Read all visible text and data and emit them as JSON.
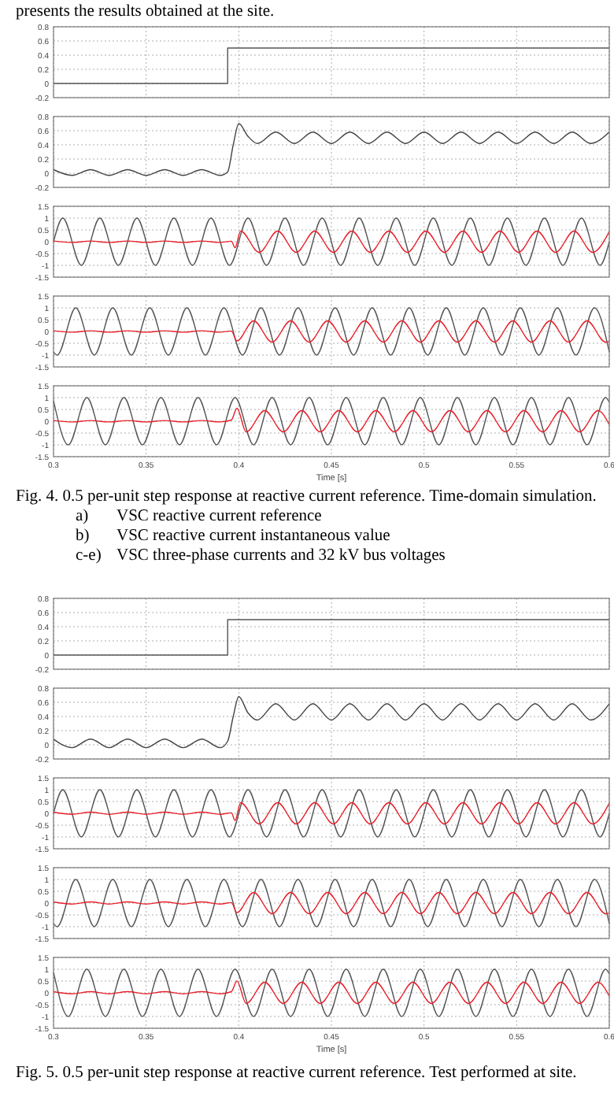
{
  "chart_data": [
    {
      "type": "step",
      "xlim": [
        0.3,
        0.6
      ],
      "xticks": [
        0.3,
        0.35,
        0.4,
        0.45,
        0.5,
        0.55,
        0.6
      ],
      "ylim": [
        -0.2,
        0.8
      ],
      "yticks": [
        -0.2,
        0,
        0.2,
        0.4,
        0.6,
        0.8
      ],
      "grid": true,
      "tick_labels": "y",
      "annotations": [
        "presents the results obtained at the site."
      ],
      "series": [
        {
          "color": "#555555",
          "x": [
            0.3,
            0.394,
            0.6
          ],
          "values": [
            0,
            0.5,
            0.5
          ]
        }
      ]
    },
    {
      "type": "line",
      "xlim": [
        0.3,
        0.6
      ],
      "xticks": [
        0.3,
        0.35,
        0.4,
        0.45,
        0.5,
        0.55,
        0.6
      ],
      "ylim": [
        -0.2,
        0.8
      ],
      "yticks": [
        -0.2,
        0,
        0.2,
        0.4,
        0.6,
        0.8
      ],
      "grid": true,
      "tick_labels": "y",
      "series": [
        {
          "color": "#444444",
          "x": [
            0.3,
            0.31,
            0.32,
            0.33,
            0.34,
            0.35,
            0.36,
            0.37,
            0.38,
            0.39,
            0.394,
            0.397,
            0.4,
            0.405,
            0.41,
            0.42,
            0.43,
            0.44,
            0.45,
            0.46,
            0.47,
            0.48,
            0.49,
            0.5,
            0.51,
            0.52,
            0.53,
            0.54,
            0.55,
            0.56,
            0.57,
            0.58,
            0.59,
            0.6
          ],
          "values": [
            0.05,
            -0.03,
            0.05,
            -0.03,
            0.05,
            -0.03,
            0.05,
            -0.03,
            0.05,
            -0.03,
            0.02,
            0.4,
            0.7,
            0.52,
            0.42,
            0.58,
            0.42,
            0.58,
            0.42,
            0.58,
            0.42,
            0.58,
            0.42,
            0.58,
            0.42,
            0.58,
            0.42,
            0.58,
            0.42,
            0.58,
            0.42,
            0.58,
            0.42,
            0.58
          ]
        }
      ]
    },
    {
      "type": "line",
      "xlim": [
        0.3,
        0.6
      ],
      "xticks": [
        0.3,
        0.35,
        0.4,
        0.45,
        0.5,
        0.55,
        0.6
      ],
      "ylim": [
        -1.5,
        1.5
      ],
      "yticks": [
        -1.5,
        -1,
        -0.5,
        0,
        0.5,
        1,
        1.5
      ],
      "grid": true,
      "tick_labels": "y",
      "series": [
        {
          "color": "#555555",
          "x": [
            0.3,
            0.305,
            0.315,
            0.325,
            0.335,
            0.345,
            0.355,
            0.365,
            0.375,
            0.385,
            0.395,
            0.405,
            0.415,
            0.425,
            0.435,
            0.445,
            0.455,
            0.465,
            0.475,
            0.485,
            0.495,
            0.505,
            0.515,
            0.525,
            0.535,
            0.545,
            0.555,
            0.565,
            0.575,
            0.585,
            0.595,
            0.6
          ],
          "values": [
            0,
            1,
            -1,
            1,
            -1,
            1,
            -1,
            1,
            -1,
            1,
            -1,
            1,
            -1,
            1,
            -1,
            1,
            -1,
            1,
            -1,
            1,
            -1,
            1,
            -1,
            1,
            -1,
            1,
            -1,
            1,
            -1,
            1,
            -1,
            0
          ]
        },
        {
          "color": "#e8202a",
          "x": [
            0.3,
            0.31,
            0.32,
            0.33,
            0.34,
            0.35,
            0.36,
            0.37,
            0.38,
            0.39,
            0.396,
            0.398,
            0.401,
            0.411,
            0.421,
            0.431,
            0.441,
            0.451,
            0.461,
            0.471,
            0.481,
            0.491,
            0.501,
            0.511,
            0.521,
            0.531,
            0.541,
            0.551,
            0.561,
            0.571,
            0.581,
            0.591,
            0.6
          ],
          "values": [
            0.03,
            -0.03,
            0.03,
            -0.03,
            0.03,
            -0.03,
            0.03,
            -0.03,
            0.03,
            -0.03,
            0.02,
            -0.25,
            0.45,
            -0.45,
            0.45,
            -0.45,
            0.45,
            -0.45,
            0.45,
            -0.45,
            0.45,
            -0.45,
            0.45,
            -0.45,
            0.45,
            -0.45,
            0.45,
            -0.45,
            0.45,
            -0.45,
            0.45,
            -0.45,
            0.43
          ]
        }
      ]
    },
    {
      "type": "line",
      "xlim": [
        0.3,
        0.6
      ],
      "xticks": [
        0.3,
        0.35,
        0.4,
        0.45,
        0.5,
        0.55,
        0.6
      ],
      "ylim": [
        -1.5,
        1.5
      ],
      "yticks": [
        -1.5,
        -1,
        -0.5,
        0,
        0.5,
        1,
        1.5
      ],
      "grid": true,
      "tick_labels": "y",
      "series": [
        {
          "color": "#555555",
          "x": [
            0.3,
            0.302,
            0.312,
            0.322,
            0.332,
            0.342,
            0.352,
            0.362,
            0.372,
            0.382,
            0.392,
            0.402,
            0.412,
            0.422,
            0.432,
            0.442,
            0.452,
            0.462,
            0.472,
            0.482,
            0.492,
            0.502,
            0.512,
            0.522,
            0.532,
            0.542,
            0.552,
            0.562,
            0.572,
            0.582,
            0.592,
            0.6
          ],
          "values": [
            -0.87,
            -1,
            1,
            -1,
            1,
            -1,
            1,
            -1,
            1,
            -1,
            1,
            -1,
            1,
            -1,
            1,
            -1,
            1,
            -1,
            1,
            -1,
            1,
            -1,
            1,
            -1,
            1,
            -1,
            1,
            -1,
            1,
            -1,
            1,
            -0.86
          ]
        },
        {
          "color": "#e8202a",
          "x": [
            0.3,
            0.31,
            0.32,
            0.33,
            0.34,
            0.35,
            0.36,
            0.37,
            0.38,
            0.39,
            0.396,
            0.399,
            0.408,
            0.418,
            0.428,
            0.438,
            0.448,
            0.458,
            0.468,
            0.478,
            0.488,
            0.498,
            0.508,
            0.518,
            0.528,
            0.538,
            0.548,
            0.558,
            0.568,
            0.578,
            0.588,
            0.598,
            0.6
          ],
          "values": [
            0.03,
            -0.03,
            0.03,
            -0.03,
            0.03,
            -0.03,
            0.03,
            -0.03,
            0.03,
            -0.03,
            0.02,
            -0.4,
            0.45,
            -0.45,
            0.45,
            -0.45,
            0.45,
            -0.45,
            0.45,
            -0.45,
            0.45,
            -0.45,
            0.45,
            -0.45,
            0.45,
            -0.45,
            0.45,
            -0.45,
            0.45,
            -0.45,
            0.45,
            -0.45,
            -0.43
          ]
        }
      ]
    },
    {
      "type": "line",
      "xlim": [
        0.3,
        0.6
      ],
      "xticks": [
        0.3,
        0.35,
        0.4,
        0.45,
        0.5,
        0.55,
        0.6
      ],
      "ylim": [
        -1.5,
        1.5
      ],
      "yticks": [
        -1.5,
        -1,
        -0.5,
        0,
        0.5,
        1,
        1.5
      ],
      "grid": true,
      "xlabel": "Time [s]",
      "annotations": [
        "Fig. 4.  0.5 per-unit step response at reactive current reference. Time-domain simulation.",
        "a)\tVSC reactive current reference",
        "b)\tVSC reactive current instantaneous value",
        "c-e)\tVSC three-phase currents and 32 kV bus voltages"
      ],
      "series": [
        {
          "color": "#555555",
          "x": [
            0.3,
            0.308,
            0.318,
            0.328,
            0.338,
            0.348,
            0.358,
            0.368,
            0.378,
            0.388,
            0.398,
            0.408,
            0.418,
            0.428,
            0.438,
            0.448,
            0.458,
            0.468,
            0.478,
            0.488,
            0.498,
            0.508,
            0.518,
            0.528,
            0.538,
            0.548,
            0.558,
            0.568,
            0.578,
            0.588,
            0.598,
            0.6
          ],
          "values": [
            0.87,
            -1,
            1,
            -1,
            1,
            -1,
            1,
            -1,
            1,
            -1,
            1,
            -1,
            1,
            -1,
            1,
            -1,
            1,
            -1,
            1,
            -1,
            1,
            -1,
            1,
            -1,
            1,
            -1,
            1,
            -1,
            1,
            -1,
            1,
            0.81
          ]
        },
        {
          "color": "#e8202a",
          "x": [
            0.3,
            0.31,
            0.32,
            0.33,
            0.34,
            0.35,
            0.36,
            0.37,
            0.38,
            0.39,
            0.396,
            0.399,
            0.404,
            0.414,
            0.424,
            0.434,
            0.444,
            0.454,
            0.464,
            0.474,
            0.484,
            0.494,
            0.504,
            0.514,
            0.524,
            0.534,
            0.544,
            0.554,
            0.564,
            0.574,
            0.584,
            0.594,
            0.6
          ],
          "values": [
            0.03,
            -0.03,
            0.03,
            -0.03,
            0.03,
            -0.03,
            0.03,
            -0.03,
            0.03,
            -0.03,
            0.05,
            0.55,
            -0.45,
            0.45,
            -0.45,
            0.45,
            -0.45,
            0.45,
            -0.45,
            0.45,
            -0.45,
            0.45,
            -0.45,
            0.45,
            -0.45,
            0.45,
            -0.45,
            0.45,
            -0.45,
            0.45,
            -0.45,
            0.45,
            -0.14
          ]
        }
      ]
    },
    {
      "type": "step",
      "xlim": [
        0.3,
        0.6
      ],
      "xticks": [
        0.3,
        0.35,
        0.4,
        0.45,
        0.5,
        0.55,
        0.6
      ],
      "ylim": [
        -0.2,
        0.8
      ],
      "yticks": [
        -0.2,
        0,
        0.2,
        0.4,
        0.6,
        0.8
      ],
      "grid": true,
      "tick_labels": "y",
      "series": [
        {
          "color": "#555555",
          "x": [
            0.3,
            0.394,
            0.6
          ],
          "values": [
            0,
            0.5,
            0.5
          ]
        }
      ]
    },
    {
      "type": "line",
      "xlim": [
        0.3,
        0.6
      ],
      "xticks": [
        0.3,
        0.35,
        0.4,
        0.45,
        0.5,
        0.55,
        0.6
      ],
      "ylim": [
        -0.2,
        0.8
      ],
      "yticks": [
        -0.2,
        0,
        0.2,
        0.4,
        0.6,
        0.8
      ],
      "grid": true,
      "tick_labels": "y",
      "series": [
        {
          "color": "#444444",
          "x": [
            0.3,
            0.31,
            0.32,
            0.33,
            0.34,
            0.35,
            0.36,
            0.37,
            0.38,
            0.39,
            0.394,
            0.397,
            0.4,
            0.405,
            0.41,
            0.42,
            0.43,
            0.44,
            0.45,
            0.46,
            0.47,
            0.48,
            0.49,
            0.5,
            0.51,
            0.52,
            0.53,
            0.54,
            0.55,
            0.56,
            0.57,
            0.58,
            0.59,
            0.6
          ],
          "values": [
            0.08,
            -0.04,
            0.08,
            -0.04,
            0.08,
            -0.04,
            0.08,
            -0.04,
            0.08,
            -0.04,
            0.05,
            0.4,
            0.68,
            0.45,
            0.35,
            0.58,
            0.35,
            0.58,
            0.35,
            0.58,
            0.35,
            0.58,
            0.35,
            0.58,
            0.35,
            0.58,
            0.35,
            0.58,
            0.35,
            0.58,
            0.35,
            0.58,
            0.35,
            0.58
          ]
        }
      ]
    },
    {
      "type": "line",
      "xlim": [
        0.3,
        0.6
      ],
      "xticks": [
        0.3,
        0.35,
        0.4,
        0.45,
        0.5,
        0.55,
        0.6
      ],
      "ylim": [
        -1.5,
        1.5
      ],
      "yticks": [
        -1.5,
        -1,
        -0.5,
        0,
        0.5,
        1,
        1.5
      ],
      "grid": true,
      "tick_labels": "y",
      "series": [
        {
          "color": "#555555",
          "x": [
            0.3,
            0.305,
            0.315,
            0.325,
            0.335,
            0.345,
            0.355,
            0.365,
            0.375,
            0.385,
            0.395,
            0.405,
            0.415,
            0.425,
            0.435,
            0.445,
            0.455,
            0.465,
            0.475,
            0.485,
            0.495,
            0.505,
            0.515,
            0.525,
            0.535,
            0.545,
            0.555,
            0.565,
            0.575,
            0.585,
            0.595,
            0.6
          ],
          "values": [
            0,
            1,
            -1,
            1,
            -1,
            1,
            -1,
            1,
            -1,
            1,
            -1,
            1,
            -1,
            1,
            -1,
            1,
            -1,
            1,
            -1,
            1,
            -1,
            1,
            -1,
            1,
            -1,
            1,
            -1,
            1,
            -1,
            1,
            -1,
            0
          ]
        },
        {
          "color": "#e8202a",
          "x": [
            0.3,
            0.31,
            0.32,
            0.33,
            0.34,
            0.35,
            0.36,
            0.37,
            0.38,
            0.39,
            0.396,
            0.398,
            0.401,
            0.411,
            0.421,
            0.431,
            0.441,
            0.451,
            0.461,
            0.471,
            0.481,
            0.491,
            0.501,
            0.511,
            0.521,
            0.531,
            0.541,
            0.551,
            0.561,
            0.571,
            0.581,
            0.591,
            0.6
          ],
          "values": [
            0.05,
            -0.04,
            0.05,
            -0.04,
            0.05,
            -0.04,
            0.05,
            -0.04,
            0.05,
            -0.04,
            0.02,
            -0.3,
            0.45,
            -0.45,
            0.45,
            -0.45,
            0.45,
            -0.45,
            0.45,
            -0.45,
            0.45,
            -0.45,
            0.45,
            -0.45,
            0.45,
            -0.45,
            0.45,
            -0.45,
            0.45,
            -0.45,
            0.45,
            -0.45,
            0.43
          ]
        }
      ]
    },
    {
      "type": "line",
      "xlim": [
        0.3,
        0.6
      ],
      "xticks": [
        0.3,
        0.35,
        0.4,
        0.45,
        0.5,
        0.55,
        0.6
      ],
      "ylim": [
        -1.5,
        1.5
      ],
      "yticks": [
        -1.5,
        -1,
        -0.5,
        0,
        0.5,
        1,
        1.5
      ],
      "grid": true,
      "tick_labels": "y",
      "series": [
        {
          "color": "#555555",
          "x": [
            0.3,
            0.302,
            0.312,
            0.322,
            0.332,
            0.342,
            0.352,
            0.362,
            0.372,
            0.382,
            0.392,
            0.402,
            0.412,
            0.422,
            0.432,
            0.442,
            0.452,
            0.462,
            0.472,
            0.482,
            0.492,
            0.502,
            0.512,
            0.522,
            0.532,
            0.542,
            0.552,
            0.562,
            0.572,
            0.582,
            0.592,
            0.6
          ],
          "values": [
            -0.87,
            -1,
            1,
            -1,
            1,
            -1,
            1,
            -1,
            1,
            -1,
            1,
            -1,
            1,
            -1,
            1,
            -1,
            1,
            -1,
            1,
            -1,
            1,
            -1,
            1,
            -1,
            1,
            -1,
            1,
            -1,
            1,
            -1,
            1,
            -0.86
          ]
        },
        {
          "color": "#e8202a",
          "x": [
            0.3,
            0.31,
            0.32,
            0.33,
            0.34,
            0.35,
            0.36,
            0.37,
            0.38,
            0.39,
            0.396,
            0.399,
            0.408,
            0.418,
            0.428,
            0.438,
            0.448,
            0.458,
            0.468,
            0.478,
            0.488,
            0.498,
            0.508,
            0.518,
            0.528,
            0.538,
            0.548,
            0.558,
            0.568,
            0.578,
            0.588,
            0.598,
            0.6
          ],
          "values": [
            0.05,
            -0.04,
            0.05,
            -0.04,
            0.05,
            -0.04,
            0.05,
            -0.04,
            0.05,
            -0.04,
            0.02,
            -0.4,
            0.45,
            -0.45,
            0.45,
            -0.45,
            0.45,
            -0.45,
            0.45,
            -0.45,
            0.45,
            -0.45,
            0.45,
            -0.45,
            0.45,
            -0.45,
            0.45,
            -0.45,
            0.45,
            -0.45,
            0.45,
            -0.45,
            -0.43
          ]
        }
      ]
    },
    {
      "type": "line",
      "xlim": [
        0.3,
        0.6
      ],
      "xticks": [
        0.3,
        0.35,
        0.4,
        0.45,
        0.5,
        0.55,
        0.6
      ],
      "ylim": [
        -1.5,
        1.5
      ],
      "yticks": [
        -1.5,
        -1,
        -0.5,
        0,
        0.5,
        1,
        1.5
      ],
      "grid": true,
      "xlabel": "Time [s]",
      "annotations": [
        "Fig. 5.  0.5 per-unit step response at reactive current reference. Test performed at site."
      ],
      "series": [
        {
          "color": "#555555",
          "x": [
            0.3,
            0.308,
            0.318,
            0.328,
            0.338,
            0.348,
            0.358,
            0.368,
            0.378,
            0.388,
            0.398,
            0.408,
            0.418,
            0.428,
            0.438,
            0.448,
            0.458,
            0.468,
            0.478,
            0.488,
            0.498,
            0.508,
            0.518,
            0.528,
            0.538,
            0.548,
            0.558,
            0.568,
            0.578,
            0.588,
            0.598,
            0.6
          ],
          "values": [
            0.87,
            -1,
            1,
            -1,
            1,
            -1,
            1,
            -1,
            1,
            -1,
            1,
            -1,
            1,
            -1,
            1,
            -1,
            1,
            -1,
            1,
            -1,
            1,
            -1,
            1,
            -1,
            1,
            -1,
            1,
            -1,
            1,
            -1,
            1,
            0.81
          ]
        },
        {
          "color": "#e8202a",
          "x": [
            0.3,
            0.31,
            0.32,
            0.33,
            0.34,
            0.35,
            0.36,
            0.37,
            0.38,
            0.39,
            0.396,
            0.399,
            0.404,
            0.414,
            0.424,
            0.434,
            0.444,
            0.454,
            0.464,
            0.474,
            0.484,
            0.494,
            0.504,
            0.514,
            0.524,
            0.534,
            0.544,
            0.554,
            0.564,
            0.574,
            0.584,
            0.594,
            0.6
          ],
          "values": [
            0.05,
            -0.04,
            0.05,
            -0.04,
            0.05,
            -0.04,
            0.05,
            -0.04,
            0.05,
            -0.04,
            0.05,
            0.5,
            -0.45,
            0.45,
            -0.45,
            0.45,
            -0.45,
            0.45,
            -0.45,
            0.45,
            -0.45,
            0.45,
            -0.45,
            0.45,
            -0.45,
            0.45,
            -0.45,
            0.45,
            -0.45,
            0.45,
            -0.45,
            0.45,
            -0.14
          ]
        }
      ]
    }
  ]
}
